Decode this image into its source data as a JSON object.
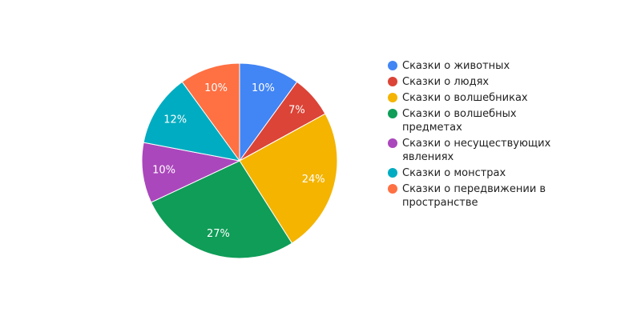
{
  "chart_data": {
    "type": "pie",
    "categories": [
      "Сказки о животных",
      "Сказки о людях",
      "Сказки о волшебниках",
      "Сказки о волшебных предметах",
      "Сказки о несуществующих явлениях",
      "Сказки о монстрах",
      "Сказки о передвижении в пространстве"
    ],
    "values": [
      10,
      7,
      24,
      27,
      10,
      12,
      10
    ],
    "value_labels": [
      "10%",
      "7%",
      "24%",
      "27%",
      "10%",
      "12%",
      "10%"
    ],
    "colors": [
      "#4285f4",
      "#db4437",
      "#f4b400",
      "#0f9d58",
      "#ab47bc",
      "#00acc1",
      "#ff7043"
    ],
    "legend": "right"
  }
}
